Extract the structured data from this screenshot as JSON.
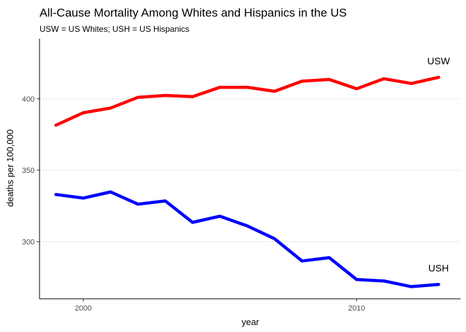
{
  "chart_data": {
    "type": "line",
    "title": "All-Cause Mortality Among Whites and Hispanics in the US",
    "subtitle": "USW = US Whites; USH = US Hispanics",
    "xlabel": "year",
    "ylabel": "deaths per 100,000",
    "xlim": [
      1998.4,
      2013.8
    ],
    "ylim": [
      260,
      442
    ],
    "x_ticks": [
      2000,
      2010
    ],
    "y_ticks": [
      300,
      350,
      400
    ],
    "grid": "horizontal major",
    "legend": "none",
    "x": [
      1999,
      2000,
      2001,
      2002,
      2003,
      2004,
      2005,
      2006,
      2007,
      2008,
      2009,
      2010,
      2011,
      2012,
      2013
    ],
    "series": [
      {
        "name": "USW",
        "color": "#ff0000",
        "values": [
          381.5,
          390.2,
          393.5,
          401.0,
          402.3,
          401.5,
          408.0,
          408.0,
          405.2,
          412.3,
          413.5,
          407.0,
          414.0,
          410.7,
          415.0
        ]
      },
      {
        "name": "USH",
        "color": "#0000ff",
        "values": [
          333.0,
          330.5,
          334.8,
          326.2,
          328.5,
          313.5,
          317.8,
          311.0,
          302.0,
          286.5,
          288.8,
          273.5,
          272.5,
          268.5,
          270.0
        ]
      }
    ]
  }
}
